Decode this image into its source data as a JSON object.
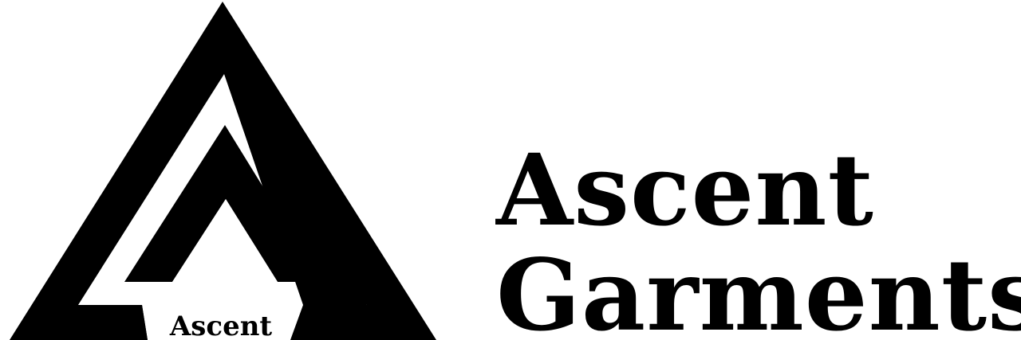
{
  "brand": {
    "line1": "Ascent",
    "line2": "Garments",
    "mark_text": "Ascent"
  },
  "colors": {
    "ink": "#000000",
    "background": "#ffffff"
  },
  "icons": {
    "logo": "nested-triangle-mountain-icon"
  }
}
